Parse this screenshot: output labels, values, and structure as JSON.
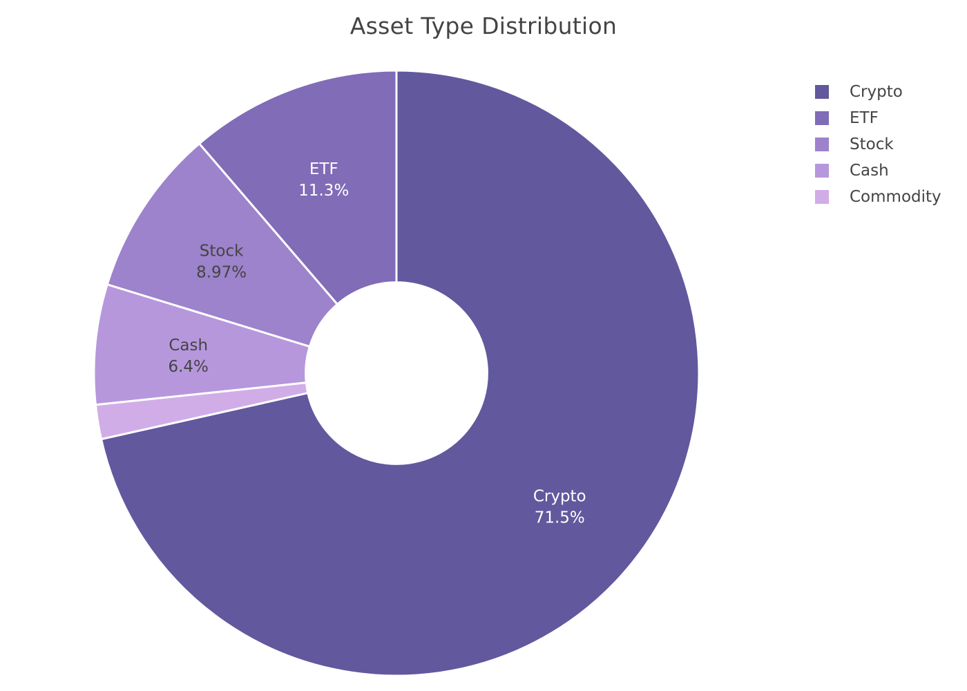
{
  "chart_data": {
    "type": "pie",
    "title": "Asset Type Distribution",
    "hole": 0.3,
    "legend_position": "top-right",
    "slices": [
      {
        "label": "Crypto",
        "value": 71.5,
        "display_percent": "71.5%",
        "color": "#62589e",
        "text_color": "#ffffff",
        "show_label": true
      },
      {
        "label": "ETF",
        "value": 11.3,
        "display_percent": "11.3%",
        "color": "#806cb7",
        "text_color": "#ffffff",
        "show_label": true
      },
      {
        "label": "Stock",
        "value": 8.97,
        "display_percent": "8.97%",
        "color": "#9d82cc",
        "text_color": "#444444",
        "show_label": true
      },
      {
        "label": "Cash",
        "value": 6.4,
        "display_percent": "6.4%",
        "color": "#b697dc",
        "text_color": "#444444",
        "show_label": true
      },
      {
        "label": "Commodity",
        "value": 1.83,
        "display_percent": "1.83%",
        "color": "#d1ade8",
        "text_color": "#444444",
        "show_label": false
      }
    ]
  }
}
